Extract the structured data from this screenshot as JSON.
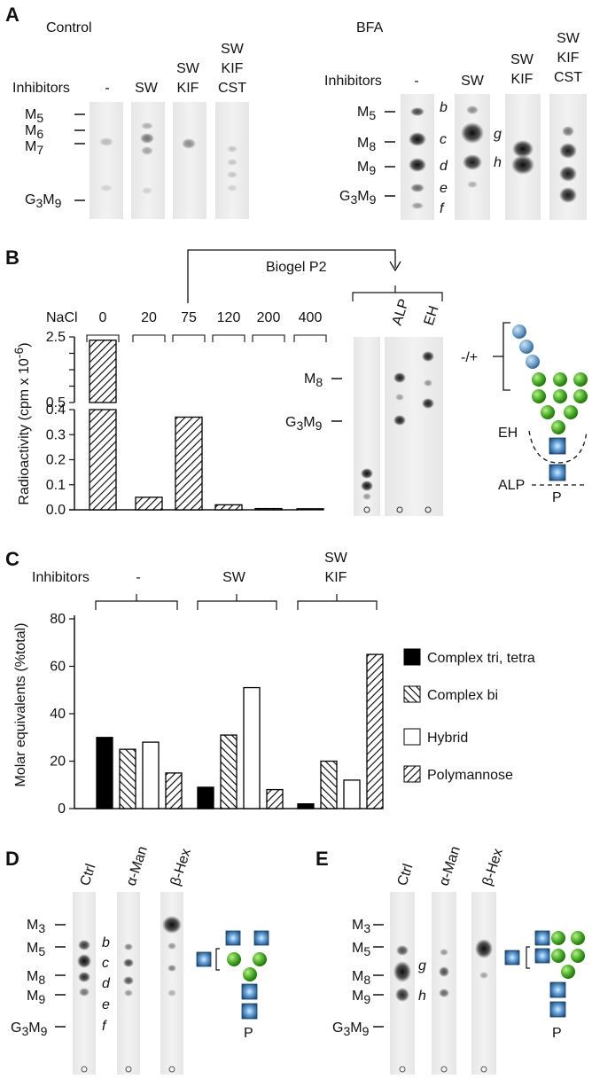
{
  "panelA": {
    "letter": "A",
    "control_title": "Control",
    "bfa_title": "BFA",
    "inhibitors_label": "Inhibitors",
    "control_lanes": [
      {
        "l1": "-",
        "l2": "",
        "l3": ""
      },
      {
        "l1": "SW",
        "l2": "",
        "l3": ""
      },
      {
        "l1": "SW",
        "l2": "KIF",
        "l3": ""
      },
      {
        "l1": "SW",
        "l2": "KIF",
        "l3": "CST"
      }
    ],
    "control_markers": [
      {
        "main": "M",
        "sub": "5"
      },
      {
        "main": "M",
        "sub": "6"
      },
      {
        "main": "M",
        "sub": "7"
      },
      {
        "main": "G",
        "sub": "3",
        "main2": "M",
        "sub2": "9"
      }
    ],
    "bfa_lanes": [
      {
        "l1": "-",
        "l2": "",
        "l3": ""
      },
      {
        "l1": "SW",
        "l2": "",
        "l3": ""
      },
      {
        "l1": "SW",
        "l2": "KIF",
        "l3": ""
      },
      {
        "l1": "SW",
        "l2": "KIF",
        "l3": "CST"
      }
    ],
    "bfa_markers": [
      {
        "main": "M",
        "sub": "5"
      },
      {
        "main": "M",
        "sub": "8"
      },
      {
        "main": "M",
        "sub": "9"
      },
      {
        "main": "G",
        "sub": "3",
        "main2": "M",
        "sub2": "9"
      }
    ],
    "bfa_band_letters": [
      "b",
      "c",
      "d",
      "e",
      "f"
    ],
    "bfa_sw_letters": [
      "g",
      "h"
    ]
  },
  "panelB": {
    "letter": "B",
    "biogel_label": "Biogel P2",
    "nacl_label": "NaCl",
    "ylabel": "Radioactivity (cpm x 10",
    "ylabel_exp": "-6",
    "ylabel_close": ")",
    "tlc_lanes": [
      "ALP",
      "EH"
    ],
    "tlc_markers": [
      {
        "main": "M",
        "sub": "8"
      },
      {
        "main": "G",
        "sub": "3",
        "main2": "M",
        "sub2": "9"
      }
    ],
    "schematic": {
      "minus_plus": "-/+",
      "eh": "EH",
      "alp": "ALP",
      "p": "P"
    }
  },
  "panelC": {
    "letter": "C",
    "inhibitors_label": "Inhibitors",
    "group_labels": [
      {
        "l1": "-",
        "l2": ""
      },
      {
        "l1": "SW",
        "l2": ""
      },
      {
        "l1": "SW",
        "l2": "KIF"
      }
    ],
    "ylabel": "Molar equivalents (%total)",
    "legend": [
      "Complex tri, tetra",
      "Complex bi",
      "Hybrid",
      "Polymannose"
    ]
  },
  "panelD": {
    "letter": "D",
    "lanes": [
      "Ctrl",
      "α-Man",
      "β-Hex"
    ],
    "markers": [
      {
        "main": "M",
        "sub": "3"
      },
      {
        "main": "M",
        "sub": "5"
      },
      {
        "main": "M",
        "sub": "8"
      },
      {
        "main": "M",
        "sub": "9"
      },
      {
        "main": "G",
        "sub": "3",
        "main2": "M",
        "sub2": "9"
      }
    ],
    "band_letters": [
      "b",
      "c",
      "d",
      "e",
      "f"
    ],
    "p_label": "P"
  },
  "panelE": {
    "letter": "E",
    "lanes": [
      "Ctrl",
      "α-Man",
      "β-Hex"
    ],
    "markers": [
      {
        "main": "M",
        "sub": "3"
      },
      {
        "main": "M",
        "sub": "5"
      },
      {
        "main": "M",
        "sub": "8"
      },
      {
        "main": "M",
        "sub": "9"
      },
      {
        "main": "G",
        "sub": "3",
        "main2": "M",
        "sub2": "9"
      }
    ],
    "band_letters": [
      "g",
      "h"
    ],
    "p_label": "P"
  },
  "chart_data": [
    {
      "type": "bar",
      "categories": [
        "0",
        "20",
        "75",
        "120",
        "200",
        "400"
      ],
      "series": [
        {
          "values": [
            2.4,
            0.05,
            0.37,
            0.02,
            0.005,
            0.003
          ]
        }
      ],
      "title": "",
      "xlabel": "NaCl",
      "ylabel": "Radioactivity (cpm x 10-6)",
      "y_ticks": [
        "0.0",
        "0.1",
        "0.2",
        "0.3",
        "0.4",
        "0.5",
        "2.5"
      ],
      "axis_break": [
        0.4,
        0.5
      ],
      "ylim": [
        0,
        2.5
      ],
      "pattern": "hatched"
    },
    {
      "type": "bar",
      "categories": [
        "-",
        "SW",
        "SW KIF"
      ],
      "series": [
        {
          "name": "Complex tri, tetra",
          "values": [
            30,
            9,
            2
          ]
        },
        {
          "name": "Complex bi",
          "values": [
            25,
            31,
            20
          ]
        },
        {
          "name": "Hybrid",
          "values": [
            28,
            51,
            12
          ]
        },
        {
          "name": "Polymannose",
          "values": [
            15,
            8,
            65
          ]
        }
      ],
      "y_ticks": [
        "0",
        "20",
        "40",
        "60",
        "80"
      ],
      "ylabel": "Molar equivalents (%total)",
      "ylim": [
        0,
        80
      ],
      "legend_position": "right"
    }
  ]
}
